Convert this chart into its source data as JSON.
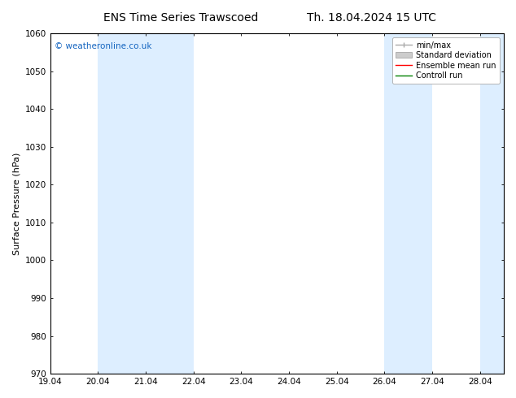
{
  "title_left": "ENS Time Series Trawscoed",
  "title_right": "Th. 18.04.2024 15 UTC",
  "ylabel": "Surface Pressure (hPa)",
  "ylim": [
    970,
    1060
  ],
  "yticks": [
    970,
    980,
    990,
    1000,
    1010,
    1020,
    1030,
    1040,
    1050,
    1060
  ],
  "xlim_start": 0.0,
  "xlim_end": 9.5,
  "xtick_positions": [
    0,
    1,
    2,
    3,
    4,
    5,
    6,
    7,
    8,
    9
  ],
  "xtick_labels": [
    "19.04",
    "20.04",
    "21.04",
    "22.04",
    "23.04",
    "24.04",
    "25.04",
    "26.04",
    "27.04",
    "28.04"
  ],
  "bg_color": "#ffffff",
  "plot_bg_color": "#ffffff",
  "shaded_bands": [
    {
      "x_start": 1.0,
      "x_end": 2.0,
      "color": "#ddeeff"
    },
    {
      "x_start": 2.0,
      "x_end": 3.0,
      "color": "#ddeeff"
    },
    {
      "x_start": 7.0,
      "x_end": 8.0,
      "color": "#ddeeff"
    },
    {
      "x_start": 9.0,
      "x_end": 9.5,
      "color": "#ddeeff"
    }
  ],
  "watermark_text": "© weatheronline.co.uk",
  "watermark_color": "#1565C0",
  "legend_items": [
    {
      "label": "min/max",
      "color": "#aaaaaa",
      "style": "errorbar"
    },
    {
      "label": "Standard deviation",
      "color": "#cccccc",
      "style": "band"
    },
    {
      "label": "Ensemble mean run",
      "color": "#ff0000",
      "style": "line"
    },
    {
      "label": "Controll run",
      "color": "#008000",
      "style": "line"
    }
  ],
  "title_fontsize": 10,
  "tick_fontsize": 7.5,
  "ylabel_fontsize": 8,
  "legend_fontsize": 7,
  "watermark_fontsize": 7.5,
  "grid_color": "#dddddd"
}
